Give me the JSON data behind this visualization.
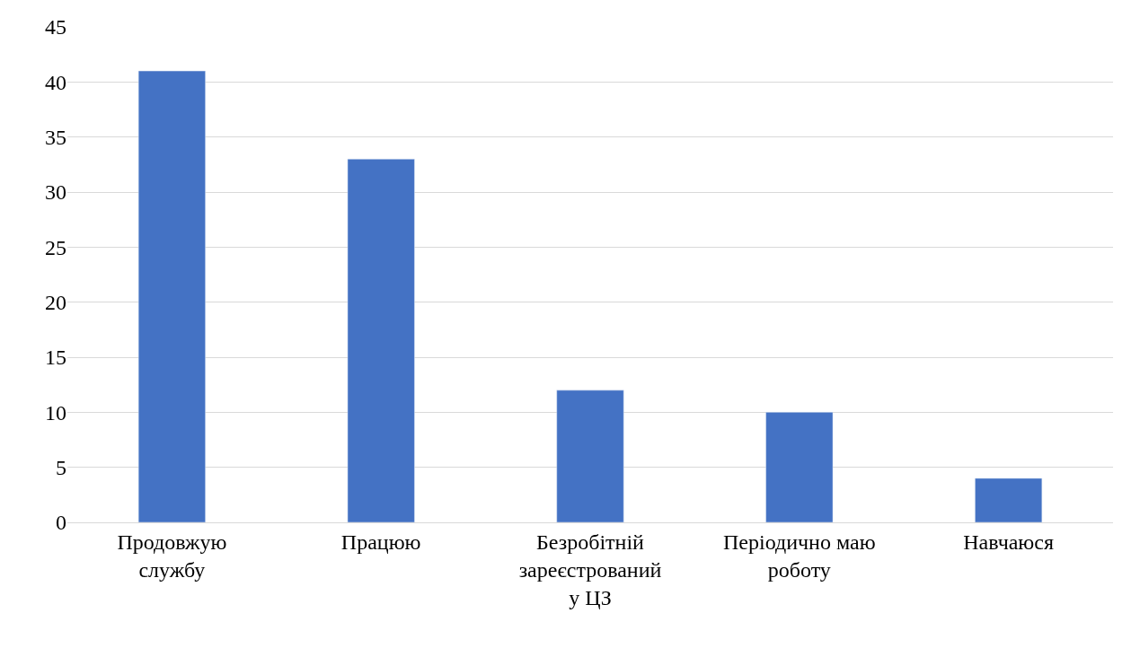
{
  "chart_data": {
    "type": "bar",
    "categories": [
      "Продовжую службу",
      "Працюю",
      "Безробітній зареєстрований у ЦЗ",
      "Періодично маю роботу",
      "Навчаюся"
    ],
    "values": [
      41,
      33,
      12,
      10,
      4
    ],
    "color": "#4472c4",
    "ylim": [
      0,
      45
    ],
    "yticks": [
      0,
      5,
      10,
      15,
      20,
      25,
      30,
      35,
      40,
      45
    ],
    "grid": "y",
    "legend": false
  }
}
